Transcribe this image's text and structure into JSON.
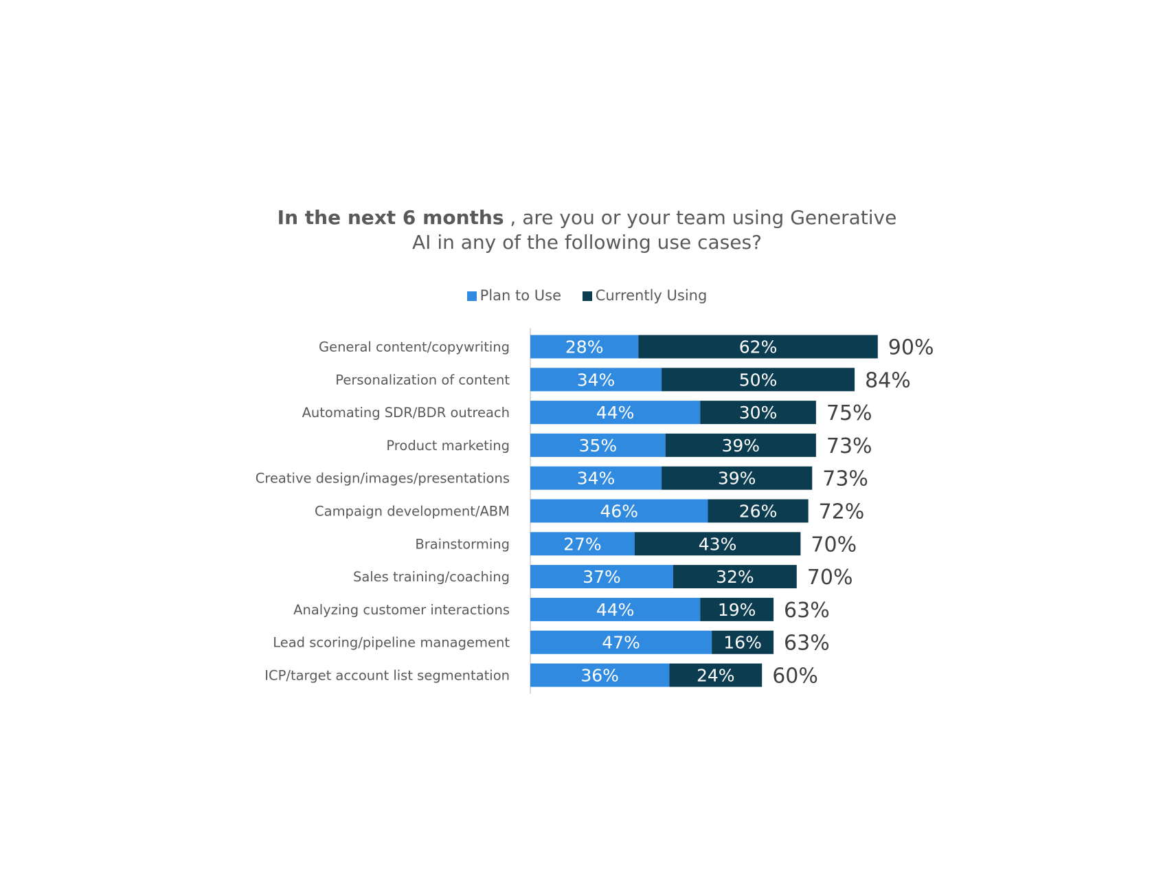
{
  "title": {
    "bold_part": "In the next 6 months",
    "rest_line1": " , are you or your team using Generative",
    "line2": "AI in any of the following use cases?"
  },
  "legend": {
    "plan_label": "Plan to Use",
    "current_label": "Currently Using"
  },
  "colors": {
    "plan": "#2F8AE0",
    "current": "#0C3C4F",
    "axis": "#D9D9D9",
    "category_text": "#595959",
    "total_text": "#404040",
    "bar_label_text": "#FFFFFF"
  },
  "chart_data": {
    "type": "bar",
    "orientation": "horizontal",
    "stacked": true,
    "title": "In the next 6 months , are you or your team using Generative AI in any of the following use cases?",
    "legend_position": "top",
    "grid": false,
    "xlim": [
      0,
      100
    ],
    "categories": [
      "General content/copywriting",
      "Personalization of content",
      "Automating SDR/BDR outreach",
      "Product marketing",
      "Creative design/images/presentations",
      "Campaign development/ABM",
      "Brainstorming",
      "Sales training/coaching",
      "Analyzing customer interactions",
      "Lead scoring/pipeline management",
      "ICP/target account list segmentation"
    ],
    "series": [
      {
        "name": "Plan to Use",
        "values": [
          28,
          34,
          44,
          35,
          34,
          46,
          27,
          37,
          44,
          47,
          36
        ],
        "labels": [
          "28%",
          "34%",
          "44%",
          "35%",
          "34%",
          "46%",
          "27%",
          "37%",
          "44%",
          "47%",
          "36%"
        ]
      },
      {
        "name": "Currently Using",
        "values": [
          62,
          50,
          30,
          39,
          39,
          26,
          43,
          32,
          19,
          16,
          24
        ],
        "labels": [
          "62%",
          "50%",
          "30%",
          "39%",
          "39%",
          "26%",
          "43%",
          "32%",
          "19%",
          "16%",
          "24%"
        ]
      }
    ],
    "totals": [
      90,
      84,
      75,
      73,
      73,
      72,
      70,
      70,
      63,
      63,
      60
    ],
    "total_labels": [
      "90%",
      "84%",
      "75%",
      "73%",
      "73%",
      "72%",
      "70%",
      "70%",
      "63%",
      "63%",
      "60%"
    ]
  }
}
